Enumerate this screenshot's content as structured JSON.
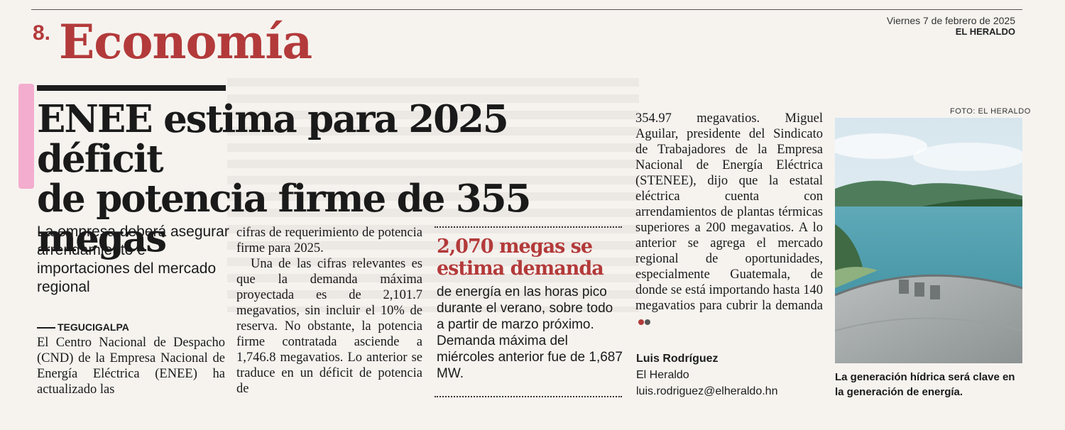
{
  "header": {
    "page_number": "8.",
    "section": "Economía",
    "date": "Viernes 7 de febrero de 2025",
    "newspaper": "EL HERALDO"
  },
  "article": {
    "headline_line1": "ENEE estima para 2025 déficit",
    "headline_line2": "de potencia firme de 355 megas",
    "deck": "La empresa deberá asegurar arrendamiento e importaciones del mercado regional",
    "dateline": "TEGUCIGALPA",
    "col1": "El Centro Nacional de Despacho (CND) de la Empresa Nacional de Energía Eléctrica (ENEE) ha actualizado las",
    "col2_p1": "cifras de requerimiento de potencia firme para 2025.",
    "col2_p2": "Una de las cifras relevantes es que la demanda máxima proyectada es de 2,101.7 megavatios, sin incluir el 10% de reserva. No obstante, la potencia firme contratada asciende a 1,746.8 megavatios. Lo anterior se traduce en un déficit de potencia de",
    "col4": "354.97 megavatios. Miguel Aguilar, presidente del Sindicato de Trabajadores de la Empresa Nacional de Energía Eléctrica (STENEE), dijo que la estatal eléctrica cuenta con arrendamientos de plantas térmicas superiores a 200 megavatios. A lo anterior se agrega el mercado regional de oportunidades, especialmente Guatemala, de donde se está importando hasta 140 megavatios para cubrir la demanda",
    "author": "Luis Rodríguez",
    "outlet": "El Heraldo",
    "email": "luis.rodriguez@elheraldo.hn"
  },
  "pullout": {
    "title": "2,070 megas se estima demanda",
    "text": "de energía en las horas pico durante el verano, sobre todo a partir de marzo próximo. Demanda máxima del miércoles anterior fue de 1,687 MW."
  },
  "photo": {
    "credit": "FOTO: EL HERALDO",
    "caption": "La generación hídrica será clave en la generación de energía."
  },
  "colors": {
    "accent": "#b33a3a",
    "highlighter": "#f2a0c8",
    "text": "#1a1a1a"
  }
}
